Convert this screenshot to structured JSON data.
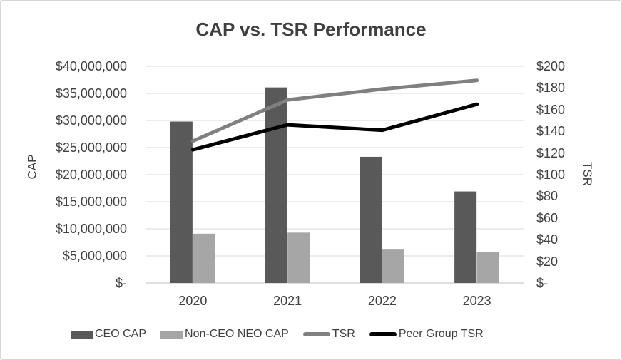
{
  "chart_data": {
    "type": "combo-bar-line",
    "title": "CAP vs. TSR Performance",
    "categories": [
      "2020",
      "2021",
      "2022",
      "2023"
    ],
    "series": [
      {
        "name": "CEO CAP",
        "type": "bar",
        "axis": "left",
        "color": "#595959",
        "values": [
          29800000,
          36100000,
          23300000,
          16900000
        ]
      },
      {
        "name": "Non-CEO NEO CAP",
        "type": "bar",
        "axis": "left",
        "color": "#a6a6a6",
        "values": [
          9100000,
          9300000,
          6300000,
          5700000
        ]
      },
      {
        "name": "TSR",
        "type": "line",
        "axis": "right",
        "color": "#808080",
        "values": [
          131,
          169,
          179,
          187
        ]
      },
      {
        "name": "Peer Group TSR",
        "type": "line",
        "axis": "right",
        "color": "#000000",
        "values": [
          123,
          146,
          141,
          165
        ]
      }
    ],
    "left_axis": {
      "label": "CAP",
      "lim": [
        0,
        40000000
      ],
      "ticks": [
        "$40,000,000",
        "$35,000,000",
        "$30,000,000",
        "$25,000,000",
        "$20,000,000",
        "$15,000,000",
        "$10,000,000",
        "$5,000,000",
        "$-"
      ]
    },
    "right_axis": {
      "label": "TSR",
      "lim": [
        0,
        200
      ],
      "ticks": [
        "$200",
        "$180",
        "$160",
        "$140",
        "$120",
        "$100",
        "$80",
        "$60",
        "$40",
        "$20",
        "$-"
      ]
    },
    "grid": true,
    "legend_position": "bottom",
    "colors": {
      "gridline": "#d9d9d9",
      "axis_line": "#bfbfbf",
      "text": "#404040",
      "title": "#3f3f3f",
      "background": "#ffffff",
      "border": "#d6d6d6"
    }
  }
}
